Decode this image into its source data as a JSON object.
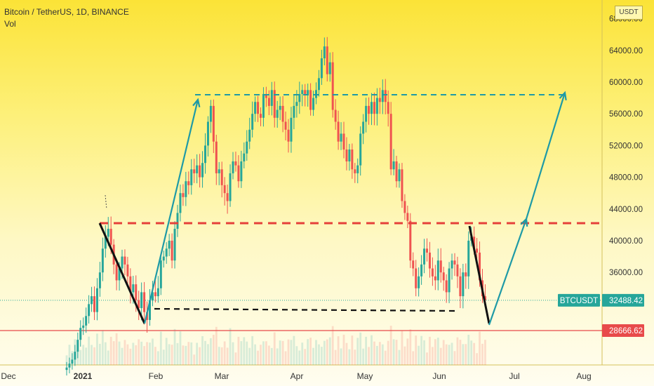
{
  "header": {
    "symbol_line": "Bitcoin / TetherUS, 1D, BINANCE",
    "volume_label": "Vol"
  },
  "colors": {
    "up": "#26a69a",
    "down": "#ef5350",
    "drawing_teal": "#1e9aa6",
    "drawing_red": "#e5403a",
    "drawing_black": "#111111",
    "price_line": "#26a69a",
    "level_line": "#e84a4a"
  },
  "chart_data": {
    "type": "candlestick",
    "title": "Bitcoin / TetherUS, 1D, BINANCE",
    "unit_label": "USDT",
    "x_ticks": [
      "Dec",
      "2021",
      "Feb",
      "Mar",
      "Apr",
      "May",
      "Jun",
      "Jul",
      "Aug"
    ],
    "y_ticks": [
      "68000.00",
      "64000.00",
      "60000.00",
      "56000.00",
      "52000.00",
      "48000.00",
      "44000.00",
      "40000.00",
      "36000.00"
    ],
    "y_range": [
      24000,
      69500
    ],
    "last_price": {
      "label": "BTCUSDT",
      "value": "32488.42"
    },
    "support_level": {
      "value": "28666.62"
    },
    "closes": [
      24000,
      24500,
      25000,
      26000,
      27500,
      29000,
      29300,
      30500,
      32000,
      33000,
      31000,
      34000,
      36000,
      39000,
      40500,
      41500,
      39500,
      37000,
      35000,
      36500,
      38000,
      37000,
      35500,
      33500,
      34500,
      32500,
      31500,
      33500,
      31000,
      30000,
      32500,
      33500,
      33000,
      34000,
      37500,
      38000,
      39000,
      40000,
      37500,
      41500,
      43500,
      46000,
      45500,
      47500,
      47000,
      49000,
      48500,
      49500,
      48000,
      49800,
      52000,
      55000,
      57000,
      52500,
      48500,
      49000,
      47000,
      46000,
      45000,
      48500,
      50000,
      49500,
      47500,
      50000,
      51000,
      52500,
      54000,
      56000,
      57500,
      56000,
      55500,
      58500,
      58000,
      57000,
      59000,
      55500,
      56500,
      57000,
      55000,
      54000,
      52500,
      55500,
      57000,
      57500,
      58500,
      59000,
      58500,
      59000,
      56500,
      58000,
      59000,
      60500,
      63000,
      64500,
      61000,
      62500,
      56500,
      55000,
      52500,
      53500,
      51500,
      50000,
      51500,
      49000,
      48500,
      49500,
      53500,
      55000,
      57000,
      56000,
      57500,
      56000,
      58000,
      57500,
      59000,
      57500,
      56000,
      49000,
      50000,
      47500,
      49000,
      45000,
      43500,
      42500,
      37500,
      36500,
      34000,
      35500,
      37000,
      39000,
      38500,
      36500,
      35500,
      35000,
      37500,
      36000,
      35000,
      33500,
      36500,
      37500,
      37000,
      35500,
      33000,
      36000,
      35500,
      40000,
      40500,
      39000,
      38500,
      35000,
      33000,
      32500
    ]
  }
}
